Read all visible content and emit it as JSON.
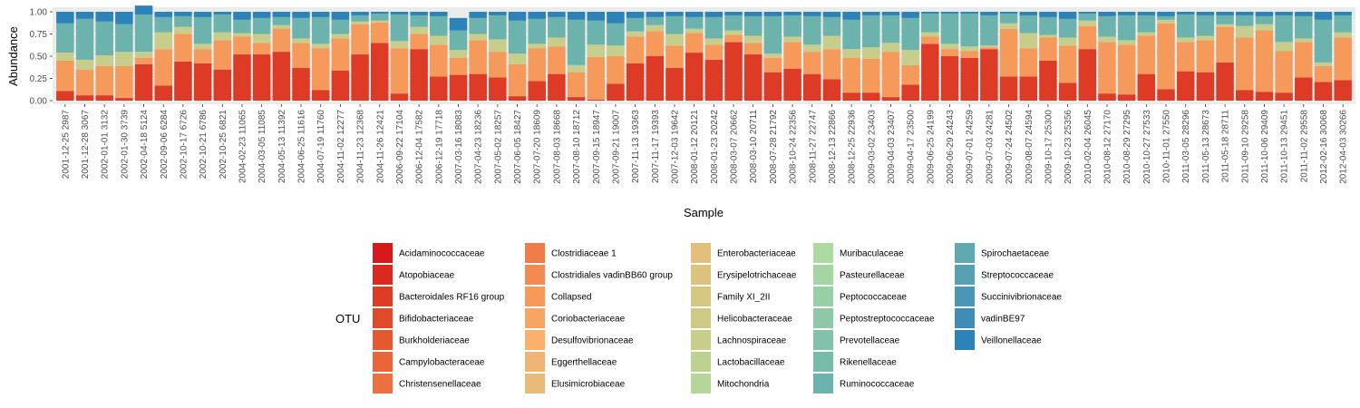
{
  "chart_data": {
    "type": "bar",
    "stacked": true,
    "xlabel": "Sample",
    "ylabel": "Abundance",
    "ylim": [
      0,
      1
    ],
    "yticks": [
      "0.00",
      "0.25",
      "0.50",
      "0.75",
      "1.00"
    ],
    "grid": true,
    "legend_title": "OTU",
    "legend_position": "bottom",
    "samples": [
      "2001-12-25 2987",
      "2001-12-28 3067",
      "2002-01-01 3132",
      "2002-01-30 3739",
      "2002-04-18 5124",
      "2002-09-06 6284",
      "2002-10-17 6726",
      "2002-10-21 6786",
      "2002-10-25 6821",
      "2004-02-23 11065",
      "2004-03-05 11085",
      "2004-05-13 11392",
      "2004-06-25 11616",
      "2004-07-19 11760",
      "2004-11-02 12277",
      "2004-11-23 12368",
      "2004-11-26 12421",
      "2006-09-22 17104",
      "2006-12-04 17582",
      "2006-12-19 17718",
      "2007-03-16 18083",
      "2007-04-23 18236",
      "2007-05-02 18257",
      "2007-06-05 18427",
      "2007-07-20 18609",
      "2007-08-03 18668",
      "2007-08-10 18712",
      "2007-09-15 18947",
      "2007-09-21 19007",
      "2007-11-13 19363",
      "2007-11-17 19393",
      "2007-12-03 19642",
      "2008-01-12 20121",
      "2008-01-23 20242",
      "2008-03-07 20662",
      "2008-03-10 20711",
      "2008-07-28 21792",
      "2008-10-24 22356",
      "2008-11-27 22747",
      "2008-12-13 22866",
      "2008-12-25 22936",
      "2009-03-02 23403",
      "2009-04-03 23407",
      "2009-04-17 23500",
      "2009-06-25 24199",
      "2009-06-29 24243",
      "2009-07-01 24259",
      "2009-07-03 24281",
      "2009-07-24 24502",
      "2009-08-07 24594",
      "2009-10-17 25300",
      "2009-10-23 25356",
      "2010-02-04 26045",
      "2010-08-12 27170",
      "2010-08-29 27295",
      "2010-10-27 27533",
      "2010-11-01 27550",
      "2011-03-05 28296",
      "2011-05-13 28673",
      "2011-05-18 28711",
      "2011-09-10 29258",
      "2011-10-06 29409",
      "2011-10-13 29451",
      "2011-11-02 29558",
      "2012-02-16 30068",
      "2012-04-03 30266"
    ],
    "otus": [
      {
        "name": "Acidaminococcaceae",
        "color": "#d7191c"
      },
      {
        "name": "Atopobiaceae",
        "color": "#da2a20"
      },
      {
        "name": "Bacteroidales RF16 group",
        "color": "#dd3b25"
      },
      {
        "name": "Bifidobacteriaceae",
        "color": "#e04a2a"
      },
      {
        "name": "Burkholderiaceae",
        "color": "#e35932"
      },
      {
        "name": "Campylobacteraceae",
        "color": "#e8663a"
      },
      {
        "name": "Christensenellaceae",
        "color": "#ec7142"
      },
      {
        "name": "Clostridiaceae 1",
        "color": "#ef7d4a"
      },
      {
        "name": "Clostridiales vadinBB60 group",
        "color": "#f28a52"
      },
      {
        "name": "Collapsed",
        "color": "#f59a5b"
      },
      {
        "name": "Coriobacteriaceae",
        "color": "#f7a564"
      },
      {
        "name": "Desulfovibrionaceae",
        "color": "#f8b06c"
      },
      {
        "name": "Eggerthellaceae",
        "color": "#eeb574"
      },
      {
        "name": "Elusimicrobiaceae",
        "color": "#e8bb7a"
      },
      {
        "name": "Enterobacteriaceae",
        "color": "#e2bf7c"
      },
      {
        "name": "Erysipelotrichaceae",
        "color": "#dcc27e"
      },
      {
        "name": "Family XI_2II",
        "color": "#d5c681"
      },
      {
        "name": "Helicobacteraceae",
        "color": "#cec985"
      },
      {
        "name": "Lachnospiraceae",
        "color": "#c7cd8a"
      },
      {
        "name": "Lactobacillaceae",
        "color": "#bdd191"
      },
      {
        "name": "Mitochondria",
        "color": "#b5d59a"
      },
      {
        "name": "Muribaculaceae",
        "color": "#addaa1"
      },
      {
        "name": "Pasteurellaceae",
        "color": "#a4d6a4"
      },
      {
        "name": "Peptococcaceae",
        "color": "#99cfa6"
      },
      {
        "name": "Peptostreptococcaceae",
        "color": "#8ec8a8"
      },
      {
        "name": "Prevotellaceae",
        "color": "#83c2aa"
      },
      {
        "name": "Rikenellaceae",
        "color": "#77bbab"
      },
      {
        "name": "Ruminococcaceae",
        "color": "#6cb3ad"
      },
      {
        "name": "Spirochaetaceae",
        "color": "#61a9b0"
      },
      {
        "name": "Streptococcaceae",
        "color": "#56a0b3"
      },
      {
        "name": "Succinivibrionaceae",
        "color": "#4b96b6"
      },
      {
        "name": "vadinBE97",
        "color": "#3f8cb8"
      },
      {
        "name": "Veillonellaceae",
        "color": "#2b83ba"
      }
    ],
    "series": [
      {
        "name": "Bacteroidales RF16 group",
        "values": [
          0.11,
          0.06,
          0.06,
          0.03,
          0.41,
          0.17,
          0.44,
          0.42,
          0.35,
          0.52,
          0.52,
          0.55,
          0.37,
          0.12,
          0.34,
          0.52,
          0.65,
          0.08,
          0.58,
          0.27,
          0.29,
          0.3,
          0.26,
          0.05,
          0.22,
          0.3,
          0.04,
          0.01,
          0.19,
          0.42,
          0.5,
          0.37,
          0.54,
          0.46,
          0.66,
          0.52,
          0.32,
          0.36,
          0.3,
          0.24,
          0.09,
          0.09,
          0.04,
          0.18,
          0.64,
          0.5,
          0.48,
          0.58,
          0.27,
          0.27,
          0.45,
          0.2,
          0.58,
          0.08,
          0.07,
          0.3,
          0.13,
          0.33,
          0.32,
          0.43,
          0.12,
          0.1,
          0.09,
          0.26,
          0.21,
          0.23
        ]
      },
      {
        "name": "Collapsed",
        "values": [
          0.34,
          0.29,
          0.33,
          0.36,
          0.07,
          0.41,
          0.31,
          0.16,
          0.33,
          0.2,
          0.13,
          0.26,
          0.28,
          0.47,
          0.36,
          0.34,
          0.23,
          0.51,
          0.17,
          0.36,
          0.19,
          0.38,
          0.29,
          0.36,
          0.37,
          0.31,
          0.28,
          0.48,
          0.31,
          0.3,
          0.28,
          0.25,
          0.22,
          0.17,
          0.08,
          0.13,
          0.16,
          0.3,
          0.25,
          0.34,
          0.39,
          0.38,
          0.51,
          0.22,
          0.08,
          0.08,
          0.08,
          0.02,
          0.54,
          0.32,
          0.26,
          0.42,
          0.26,
          0.58,
          0.56,
          0.43,
          0.74,
          0.33,
          0.36,
          0.4,
          0.59,
          0.69,
          0.47,
          0.4,
          0.18,
          0.48
        ]
      },
      {
        "name": "Lachnospiraceae",
        "values": [
          0.09,
          0.11,
          0.12,
          0.16,
          0.07,
          0.19,
          0.08,
          0.06,
          0.09,
          0.04,
          0.1,
          0.04,
          0.05,
          0.05,
          0.05,
          0.03,
          0.02,
          0.08,
          0.08,
          0.1,
          0.09,
          0.07,
          0.14,
          0.12,
          0.05,
          0.1,
          0.08,
          0.14,
          0.12,
          0.06,
          0.07,
          0.13,
          0.05,
          0.07,
          0.05,
          0.08,
          0.05,
          0.06,
          0.08,
          0.15,
          0.1,
          0.13,
          0.1,
          0.17,
          0.05,
          0.06,
          0.05,
          0.02,
          0.06,
          0.17,
          0.03,
          0.09,
          0.06,
          0.06,
          0.05,
          0.04,
          0.04,
          0.05,
          0.05,
          0.03,
          0.13,
          0.07,
          0.1,
          0.04,
          0.04,
          0.06
        ]
      },
      {
        "name": "Ruminococcaceae",
        "values": [
          0.33,
          0.46,
          0.38,
          0.31,
          0.42,
          0.17,
          0.12,
          0.3,
          0.2,
          0.15,
          0.18,
          0.09,
          0.23,
          0.3,
          0.16,
          0.07,
          0.08,
          0.3,
          0.13,
          0.22,
          0.22,
          0.18,
          0.27,
          0.37,
          0.28,
          0.23,
          0.51,
          0.27,
          0.25,
          0.15,
          0.09,
          0.2,
          0.13,
          0.24,
          0.17,
          0.22,
          0.42,
          0.24,
          0.32,
          0.21,
          0.33,
          0.36,
          0.31,
          0.36,
          0.21,
          0.34,
          0.37,
          0.34,
          0.11,
          0.2,
          0.2,
          0.21,
          0.08,
          0.23,
          0.28,
          0.19,
          0.04,
          0.26,
          0.23,
          0.1,
          0.12,
          0.09,
          0.3,
          0.25,
          0.48,
          0.19
        ]
      },
      {
        "name": "Veillonellaceae",
        "values": [
          0.13,
          0.08,
          0.11,
          0.14,
          0.1,
          0.06,
          0.05,
          0.06,
          0.03,
          0.09,
          0.07,
          0.06,
          0.07,
          0.06,
          0.09,
          0.04,
          0.02,
          0.03,
          0.04,
          0.05,
          0.14,
          0.07,
          0.04,
          0.1,
          0.08,
          0.06,
          0.09,
          0.1,
          0.13,
          0.07,
          0.06,
          0.05,
          0.06,
          0.06,
          0.04,
          0.05,
          0.05,
          0.04,
          0.05,
          0.06,
          0.09,
          0.04,
          0.04,
          0.07,
          0.02,
          0.02,
          0.02,
          0.04,
          0.02,
          0.04,
          0.06,
          0.08,
          0.02,
          0.05,
          0.04,
          0.04,
          0.05,
          0.03,
          0.04,
          0.04,
          0.04,
          0.05,
          0.04,
          0.05,
          0.09,
          0.04
        ]
      }
    ]
  }
}
